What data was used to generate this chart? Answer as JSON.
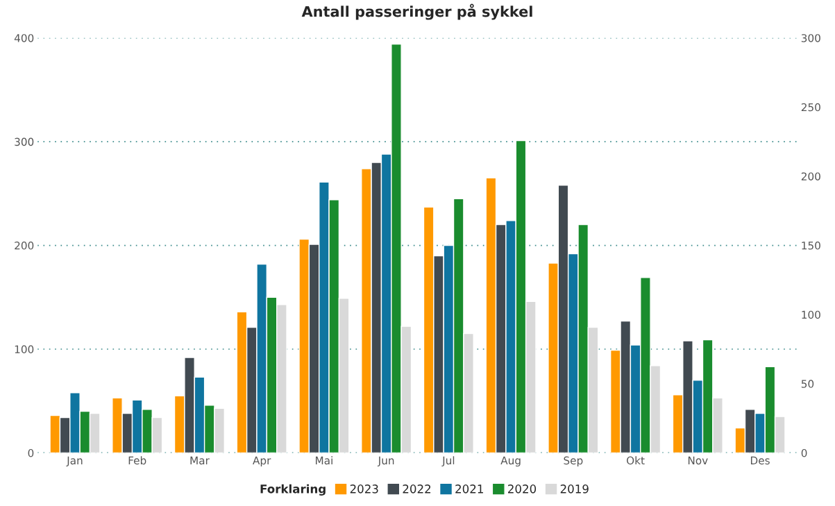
{
  "chart_data": {
    "type": "bar",
    "title": "Antall passeringer på sykkel",
    "categories": [
      "Jan",
      "Feb",
      "Mar",
      "Apr",
      "Mai",
      "Jun",
      "Jul",
      "Aug",
      "Sep",
      "Okt",
      "Nov",
      "Des"
    ],
    "series": [
      {
        "name": "2023",
        "color": "#ff9900",
        "values": [
          36,
          53,
          55,
          136,
          206,
          274,
          237,
          265,
          183,
          99,
          56,
          24
        ]
      },
      {
        "name": "2022",
        "color": "#414a51",
        "values": [
          34,
          38,
          92,
          121,
          201,
          280,
          190,
          220,
          258,
          127,
          108,
          42
        ]
      },
      {
        "name": "2021",
        "color": "#0f75a0",
        "values": [
          58,
          51,
          73,
          182,
          261,
          288,
          200,
          224,
          192,
          104,
          70,
          38
        ]
      },
      {
        "name": "2020",
        "color": "#1a8c2e",
        "values": [
          40,
          42,
          46,
          150,
          244,
          394,
          245,
          301,
          220,
          169,
          109,
          83
        ]
      },
      {
        "name": "2019",
        "color": "#d9d9d9",
        "values": [
          38,
          34,
          43,
          143,
          149,
          122,
          115,
          146,
          121,
          84,
          53,
          35
        ]
      }
    ],
    "ylim": [
      0,
      400
    ],
    "yticks": [
      0,
      100,
      200,
      300,
      400
    ],
    "y2lim": [
      0,
      300
    ],
    "y2ticks": [
      0,
      50,
      100,
      150,
      200,
      250,
      300
    ],
    "grid": "y",
    "legend": "bottom",
    "legend_title": "Forklaring"
  }
}
